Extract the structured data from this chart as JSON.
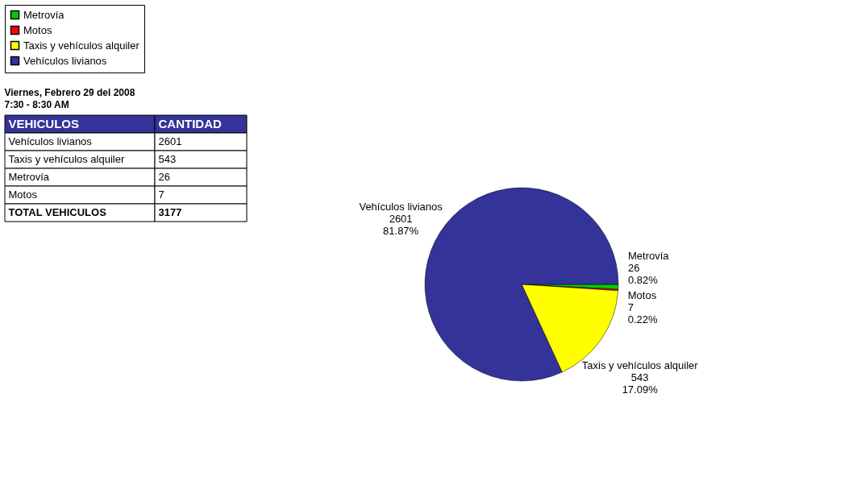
{
  "chart_data": [
    {
      "type": "other",
      "title": "Viernes, Febrero 29 del 2008",
      "subtitle": "7:30 - 8:30 AM",
      "annotations": [
        "VEHICULOS",
        "CANTIDAD",
        "Vehículos livianos",
        "2601",
        "Taxis y vehículos alquiler",
        "543",
        "Metrovía",
        "26",
        "Motos",
        "7",
        "TOTAL VEHICULOS",
        "3177"
      ]
    },
    {
      "type": "pie",
      "categories": [
        "Metrovía",
        "Motos",
        "Taxis y vehículos alquiler",
        "Vehículos livianos"
      ],
      "values": [
        26,
        7,
        543,
        2601
      ],
      "colors": [
        "#00cc00",
        "#ff0000",
        "#ffff00",
        "#333399"
      ],
      "value_labels": [
        "26\n0.82%",
        "7\n0.22%",
        "543\n17.09%",
        "2601\n81.87%"
      ],
      "data_labels": true,
      "legend": "top"
    }
  ]
}
